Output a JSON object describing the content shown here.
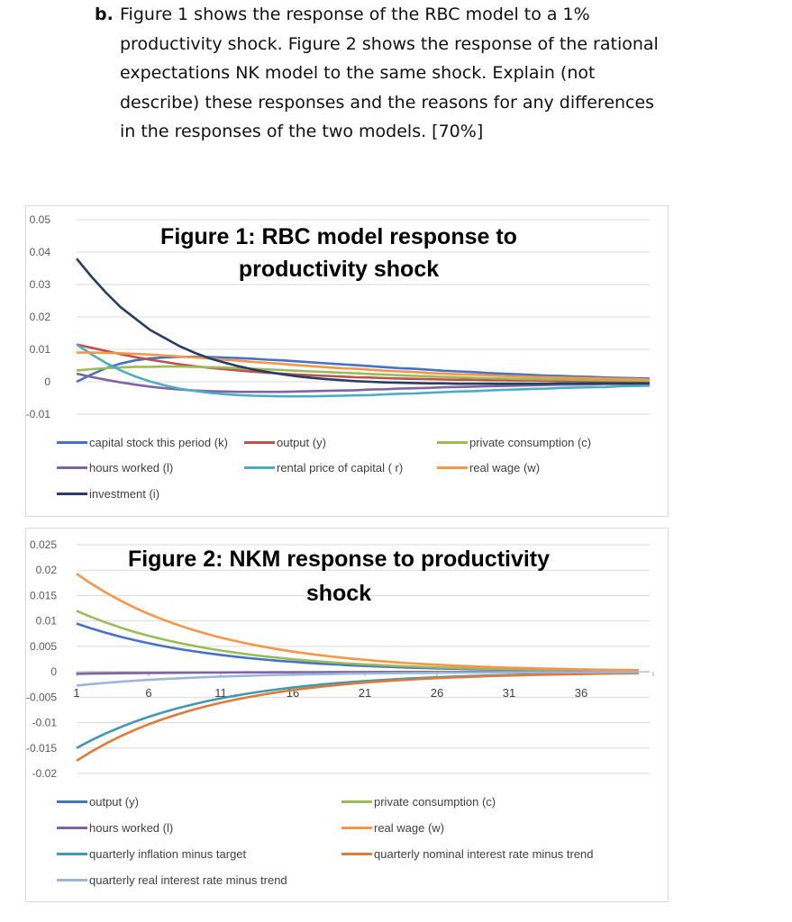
{
  "question": {
    "label": "b.",
    "lines": [
      "Figure 1 shows the response of the RBC model to a 1%",
      "productivity shock. Figure 2 shows the response of the rational",
      "expectations NK model to the same shock. Explain (not",
      "describe) these responses and the reasons for any differences",
      "in the responses of the two models. [70%]"
    ]
  },
  "chart_data": [
    {
      "type": "line",
      "title_lines": [
        "Figure 1: RBC model response to",
        "productivity shock"
      ],
      "ylim": [
        -0.01,
        0.05
      ],
      "yticks": [
        "0.05",
        "0.04",
        "0.03",
        "0.02",
        "0.01",
        "0",
        "-0.01"
      ],
      "ytick_values": [
        0.05,
        0.04,
        0.03,
        0.02,
        0.01,
        0,
        -0.01
      ],
      "x": "periods 1-40",
      "grid": true,
      "legend": "bottom",
      "series": [
        {
          "name": "capital stock this period (k)",
          "color": "#4472C4",
          "values": [
            0,
            0.0022,
            0.0042,
            0.0056,
            0.0066,
            0.0072,
            0.0075,
            0.0077,
            0.0077,
            0.0076,
            0.0075,
            0.0073,
            0.0071,
            0.0068,
            0.0066,
            0.0063,
            0.006,
            0.0057,
            0.0054,
            0.0051,
            0.0048,
            0.0045,
            0.0042,
            0.004,
            0.0037,
            0.0034,
            0.0032,
            0.003,
            0.0027,
            0.0025,
            0.0023,
            0.0021,
            0.0019,
            0.0018,
            0.0016,
            0.0015,
            0.0013,
            0.0012,
            0.0011,
            0.001
          ]
        },
        {
          "name": "output (y)",
          "color": "#C0504D",
          "values": [
            0.0115,
            0.0105,
            0.0095,
            0.0085,
            0.0076,
            0.0068,
            0.0061,
            0.0054,
            0.0048,
            0.0043,
            0.0039,
            0.0035,
            0.0031,
            0.0028,
            0.0025,
            0.0022,
            0.002,
            0.0018,
            0.0016,
            0.0014,
            0.0013,
            0.0011,
            0.001,
            0.0009,
            0.0008,
            0.0007,
            0.0006,
            0.0006,
            0.0005,
            0.0005,
            0.0004,
            0.0004,
            0.0003,
            0.0003,
            0.0003,
            0.0002,
            0.0002,
            0.0002,
            0.0002,
            0.0001
          ]
        },
        {
          "name": "private consumption (c)",
          "color": "#9BBB59",
          "values": [
            0.0035,
            0.0039,
            0.0042,
            0.0044,
            0.0046,
            0.0046,
            0.0047,
            0.0047,
            0.0046,
            0.0045,
            0.0044,
            0.0042,
            0.004,
            0.0038,
            0.0036,
            0.0034,
            0.0032,
            0.003,
            0.0028,
            0.0026,
            0.0024,
            0.0022,
            0.002,
            0.0018,
            0.0017,
            0.0015,
            0.0014,
            0.0012,
            0.0011,
            0.001,
            0.0009,
            0.0008,
            0.0007,
            0.0007,
            0.0006,
            0.0005,
            0.0005,
            0.0004,
            0.0004,
            0.0003
          ]
        },
        {
          "name": "hours worked (l)",
          "color": "#8064A2",
          "values": [
            0.0025,
            0.0015,
            0.0006,
            -0.0002,
            -0.0009,
            -0.0015,
            -0.002,
            -0.0024,
            -0.0027,
            -0.0029,
            -0.003,
            -0.0031,
            -0.0031,
            -0.0031,
            -0.0031,
            -0.003,
            -0.0029,
            -0.0028,
            -0.0027,
            -0.0026,
            -0.0024,
            -0.0023,
            -0.0021,
            -0.002,
            -0.0019,
            -0.0017,
            -0.0016,
            -0.0015,
            -0.0014,
            -0.0013,
            -0.0012,
            -0.0011,
            -0.001,
            -0.0009,
            -0.0009,
            -0.0008,
            -0.0007,
            -0.0007,
            -0.0006,
            -0.0006
          ]
        },
        {
          "name": "rental price of capital ( r)",
          "color": "#4BACC6",
          "values": [
            0.0115,
            0.0085,
            0.0058,
            0.0035,
            0.0016,
            0.0001,
            -0.0011,
            -0.0021,
            -0.0028,
            -0.0034,
            -0.0038,
            -0.0041,
            -0.0043,
            -0.0044,
            -0.0045,
            -0.0045,
            -0.0045,
            -0.0044,
            -0.0043,
            -0.0042,
            -0.0041,
            -0.0039,
            -0.0037,
            -0.0036,
            -0.0034,
            -0.0032,
            -0.003,
            -0.0029,
            -0.0027,
            -0.0025,
            -0.0024,
            -0.0022,
            -0.0021,
            -0.0019,
            -0.0018,
            -0.0017,
            -0.0016,
            -0.0014,
            -0.0013,
            -0.0012
          ]
        },
        {
          "name": "real wage (w)",
          "color": "#F79646",
          "values": [
            0.009,
            0.009,
            0.0089,
            0.0088,
            0.0086,
            0.0084,
            0.0081,
            0.0078,
            0.0075,
            0.0072,
            0.0068,
            0.0065,
            0.0061,
            0.0058,
            0.0055,
            0.0051,
            0.0048,
            0.0045,
            0.0042,
            0.004,
            0.0037,
            0.0034,
            0.0032,
            0.003,
            0.0027,
            0.0025,
            0.0023,
            0.0022,
            0.002,
            0.0018,
            0.0017,
            0.0015,
            0.0014,
            0.0013,
            0.0012,
            0.0011,
            0.001,
            0.0009,
            0.0008,
            0.0007
          ]
        },
        {
          "name": "investment (i)",
          "color": "#243F60",
          "values": [
            0.038,
            0.0325,
            0.0275,
            0.023,
            0.0195,
            0.016,
            0.0135,
            0.011,
            0.009,
            0.0073,
            0.006,
            0.0048,
            0.0038,
            0.003,
            0.0023,
            0.0017,
            0.0012,
            0.0008,
            0.0005,
            0.0002,
            0,
            -0.0002,
            -0.0003,
            -0.0004,
            -0.0005,
            -0.0005,
            -0.0006,
            -0.0006,
            -0.0006,
            -0.0006,
            -0.0006,
            -0.0006,
            -0.0006,
            -0.0005,
            -0.0005,
            -0.0005,
            -0.0005,
            -0.0005,
            -0.0005,
            -0.0005
          ]
        }
      ]
    },
    {
      "type": "line",
      "title_lines": [
        "Figure 2: NKM response to productivity",
        "shock"
      ],
      "ylim": [
        -0.02,
        0.025
      ],
      "yticks": [
        "0.025",
        "0.02",
        "0.015",
        "0.01",
        "0.005",
        "0",
        "-0.005",
        "-0.01",
        "-0.015",
        "-0.02"
      ],
      "ytick_values": [
        0.025,
        0.02,
        0.015,
        0.01,
        0.005,
        0,
        -0.005,
        -0.01,
        -0.015,
        -0.02
      ],
      "xticks": [
        "1",
        "6",
        "11",
        "16",
        "21",
        "26",
        "31",
        "36"
      ],
      "xtick_values": [
        1,
        6,
        11,
        16,
        21,
        26,
        31,
        36
      ],
      "grid": true,
      "legend": "bottom",
      "series": [
        {
          "name": "output (y)",
          "color": "#4472C4",
          "values": [
            0.0095,
            0.00855,
            0.0077,
            0.00693,
            0.00623,
            0.00561,
            0.00505,
            0.00454,
            0.00409,
            0.00368,
            0.00331,
            0.00298,
            0.00268,
            0.00241,
            0.00217,
            0.00196,
            0.00176,
            0.00158,
            0.00143,
            0.00128,
            0.00116,
            0.00104,
            0.00094,
            0.00084,
            0.00076,
            0.00068,
            0.00061,
            0.00055,
            0.0005,
            0.00045,
            0.0004,
            0.00036,
            0.00033,
            0.00029,
            0.00026,
            0.00024,
            0.00021,
            0.00019,
            0.00017,
            0.00016
          ]
        },
        {
          "name": "private consumption (c)",
          "color": "#9BBB59",
          "values": [
            0.012,
            0.0108,
            0.00972,
            0.00875,
            0.00787,
            0.00709,
            0.00638,
            0.00574,
            0.00517,
            0.00465,
            0.00418,
            0.00377,
            0.00339,
            0.00305,
            0.00275,
            0.00247,
            0.00222,
            0.002,
            0.0018,
            0.00162,
            0.00146,
            0.00131,
            0.00118,
            0.00106,
            0.00096,
            0.00086,
            0.00078,
            0.0007,
            0.00063,
            0.00057,
            0.00051,
            0.00046,
            0.00041,
            0.00037,
            0.00033,
            0.0003,
            0.00027,
            0.00024,
            0.00022,
            0.0002
          ]
        },
        {
          "name": "hours worked (l)",
          "color": "#8064A2",
          "values": [
            -0.0004,
            -0.00036,
            -0.00032,
            -0.00029,
            -0.00026,
            -0.00024,
            -0.00021,
            -0.00019,
            -0.00017,
            -0.00015,
            -0.00014,
            -0.00013,
            -0.00011,
            -0.0001,
            -9e-05,
            -8e-05,
            -7e-05,
            -7e-05,
            -6e-05,
            -5e-05,
            -5e-05,
            -4e-05,
            -4e-05,
            -4e-05,
            -3e-05,
            -3e-05,
            -3e-05,
            -2e-05,
            -2e-05,
            -2e-05,
            -2e-05,
            -2e-05,
            -1e-05,
            -1e-05,
            -1e-05,
            -1e-05,
            -1e-05,
            -1e-05,
            -1e-05,
            -1e-05
          ]
        },
        {
          "name": "real wage (w)",
          "color": "#F79646",
          "values": [
            0.0193,
            0.01737,
            0.01563,
            0.01407,
            0.01266,
            0.0114,
            0.01026,
            0.00923,
            0.00831,
            0.00748,
            0.00673,
            0.00606,
            0.00545,
            0.00491,
            0.00442,
            0.00397,
            0.00358,
            0.00322,
            0.0029,
            0.00261,
            0.00235,
            0.00211,
            0.0019,
            0.00171,
            0.00154,
            0.00139,
            0.00125,
            0.00112,
            0.00101,
            0.00091,
            0.00082,
            0.00074,
            0.00066,
            0.0006,
            0.00054,
            0.00048,
            0.00043,
            0.00039,
            0.00035,
            0.00032
          ]
        },
        {
          "name": "quarterly inflation minus target",
          "color": "#4198AF",
          "values": [
            -0.015,
            -0.0135,
            -0.01215,
            -0.01094,
            -0.00984,
            -0.00886,
            -0.00797,
            -0.00717,
            -0.00646,
            -0.00581,
            -0.00523,
            -0.00471,
            -0.00424,
            -0.00381,
            -0.00343,
            -0.00309,
            -0.00278,
            -0.0025,
            -0.00225,
            -0.00203,
            -0.00182,
            -0.00164,
            -0.00148,
            -0.00133,
            -0.0012,
            -0.00108,
            -0.00097,
            -0.00087,
            -0.00078,
            -0.00071,
            -0.00064,
            -0.00057,
            -0.00051,
            -0.00046,
            -0.00042,
            -0.00038,
            -0.00034,
            -0.0003,
            -0.00027,
            -0.00025
          ]
        },
        {
          "name": "quarterly nominal interest rate minus trend",
          "color": "#DE7B38",
          "values": [
            -0.0175,
            -0.01575,
            -0.01418,
            -0.01276,
            -0.01148,
            -0.01033,
            -0.0093,
            -0.00837,
            -0.00753,
            -0.00678,
            -0.0061,
            -0.00549,
            -0.00494,
            -0.00445,
            -0.004,
            -0.0036,
            -0.00324,
            -0.00292,
            -0.00263,
            -0.00236,
            -0.00213,
            -0.00191,
            -0.00172,
            -0.00155,
            -0.0014,
            -0.00126,
            -0.00113,
            -0.00102,
            -0.00092,
            -0.00082,
            -0.00074,
            -0.00067,
            -0.0006,
            -0.00054,
            -0.00049,
            -0.00044,
            -0.00039,
            -0.00036,
            -0.00032,
            -0.00029
          ]
        },
        {
          "name": "quarterly real interest rate minus trend",
          "color": "#9DB5D8",
          "values": [
            -0.0027,
            -0.00243,
            -0.00219,
            -0.00197,
            -0.00177,
            -0.00159,
            -0.00143,
            -0.00129,
            -0.00116,
            -0.00105,
            -0.00094,
            -0.00085,
            -0.00076,
            -0.00069,
            -0.00062,
            -0.00056,
            -0.0005,
            -0.00045,
            -0.00041,
            -0.00036,
            -0.00033,
            -0.0003,
            -0.00027,
            -0.00024,
            -0.00022,
            -0.00019,
            -0.00017,
            -0.00016,
            -0.00014,
            -0.00013,
            -0.00011,
            -0.0001,
            -9e-05,
            -8e-05,
            -8e-05,
            -7e-05,
            -6e-05,
            -5e-05,
            -5e-05,
            -4e-05
          ]
        }
      ]
    }
  ]
}
